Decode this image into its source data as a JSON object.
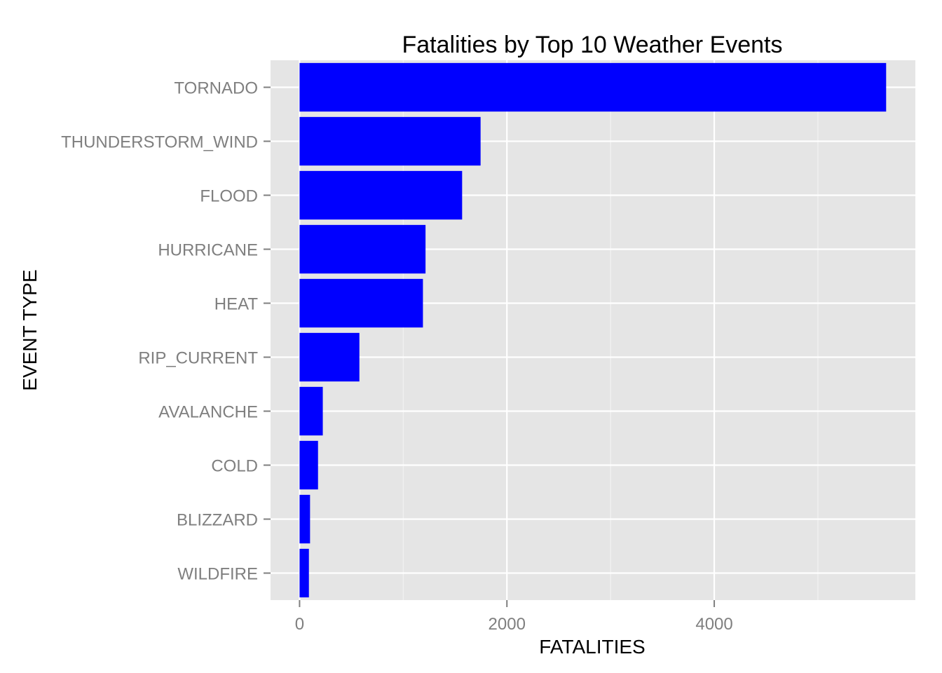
{
  "chart_data": {
    "type": "bar",
    "orientation": "horizontal",
    "title": "Fatalities by Top 10 Weather Events",
    "xlabel": "FATALITIES",
    "ylabel": "EVENT TYPE",
    "categories": [
      "TORNADO",
      "THUNDERSTORM_WIND",
      "FLOOD",
      "HURRICANE",
      "HEAT",
      "RIP_CURRENT",
      "AVALANCHE",
      "COLD",
      "BLIZZARD",
      "WILDFIRE"
    ],
    "values": [
      5658,
      1746,
      1568,
      1215,
      1190,
      577,
      224,
      178,
      101,
      90
    ],
    "xlim": [
      -280,
      5940
    ],
    "xticks": [
      0,
      2000,
      4000
    ],
    "xtick_labels": [
      "0",
      "2000",
      "4000"
    ],
    "grid": true,
    "colors": {
      "bar": "#0000ff",
      "panel": "#e5e5e5",
      "grid_major": "#ffffff",
      "grid_minor": "#f2f2f2",
      "tick": "#7f7f7f"
    }
  }
}
